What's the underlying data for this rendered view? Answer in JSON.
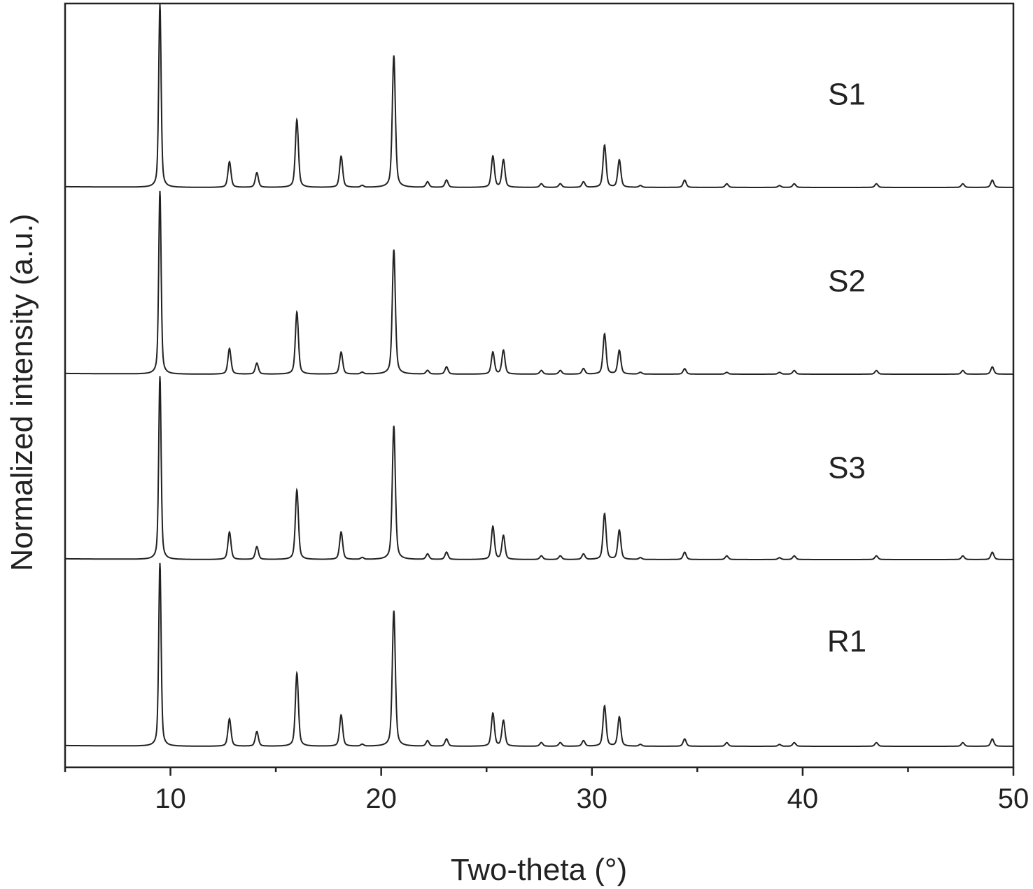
{
  "chart_data": {
    "type": "line",
    "title": "",
    "xlabel": "Two-theta (°)",
    "ylabel": "Normalized intensity (a.u.)",
    "xlim": [
      5,
      50
    ],
    "x_ticks_major": [
      10,
      20,
      30,
      40,
      50
    ],
    "x_ticks_minor": [
      5,
      15,
      25,
      35,
      45
    ],
    "y_ticks": [],
    "grid": false,
    "legend": "none (series labeled inline on the right)",
    "stacked_offset": true,
    "peaks_two_theta": [
      9.5,
      12.8,
      14.1,
      16.0,
      18.1,
      19.1,
      20.6,
      22.2,
      23.1,
      25.3,
      25.8,
      27.6,
      28.5,
      29.6,
      30.6,
      31.3,
      32.3,
      34.4,
      36.4,
      38.9,
      39.6,
      43.5,
      47.6,
      49.0
    ],
    "series": [
      {
        "name": "S1",
        "color": "#222222",
        "intensity": [
          1.0,
          0.14,
          0.08,
          0.37,
          0.17,
          0.01,
          0.72,
          0.03,
          0.04,
          0.17,
          0.15,
          0.02,
          0.02,
          0.03,
          0.23,
          0.15,
          0.01,
          0.04,
          0.02,
          0.01,
          0.02,
          0.02,
          0.02,
          0.04
        ]
      },
      {
        "name": "S2",
        "color": "#222222",
        "intensity": [
          1.0,
          0.14,
          0.06,
          0.34,
          0.12,
          0.01,
          0.68,
          0.02,
          0.04,
          0.12,
          0.13,
          0.02,
          0.02,
          0.03,
          0.22,
          0.13,
          0.01,
          0.03,
          0.01,
          0.01,
          0.02,
          0.02,
          0.02,
          0.04
        ]
      },
      {
        "name": "S3",
        "color": "#222222",
        "intensity": [
          1.0,
          0.15,
          0.07,
          0.38,
          0.15,
          0.01,
          0.73,
          0.03,
          0.04,
          0.18,
          0.13,
          0.02,
          0.02,
          0.03,
          0.25,
          0.16,
          0.01,
          0.04,
          0.02,
          0.01,
          0.02,
          0.02,
          0.02,
          0.04
        ]
      },
      {
        "name": "R1",
        "color": "#222222",
        "intensity": [
          1.0,
          0.15,
          0.08,
          0.4,
          0.17,
          0.01,
          0.74,
          0.03,
          0.04,
          0.18,
          0.14,
          0.02,
          0.02,
          0.03,
          0.22,
          0.16,
          0.01,
          0.04,
          0.02,
          0.01,
          0.02,
          0.02,
          0.02,
          0.04
        ]
      }
    ]
  }
}
